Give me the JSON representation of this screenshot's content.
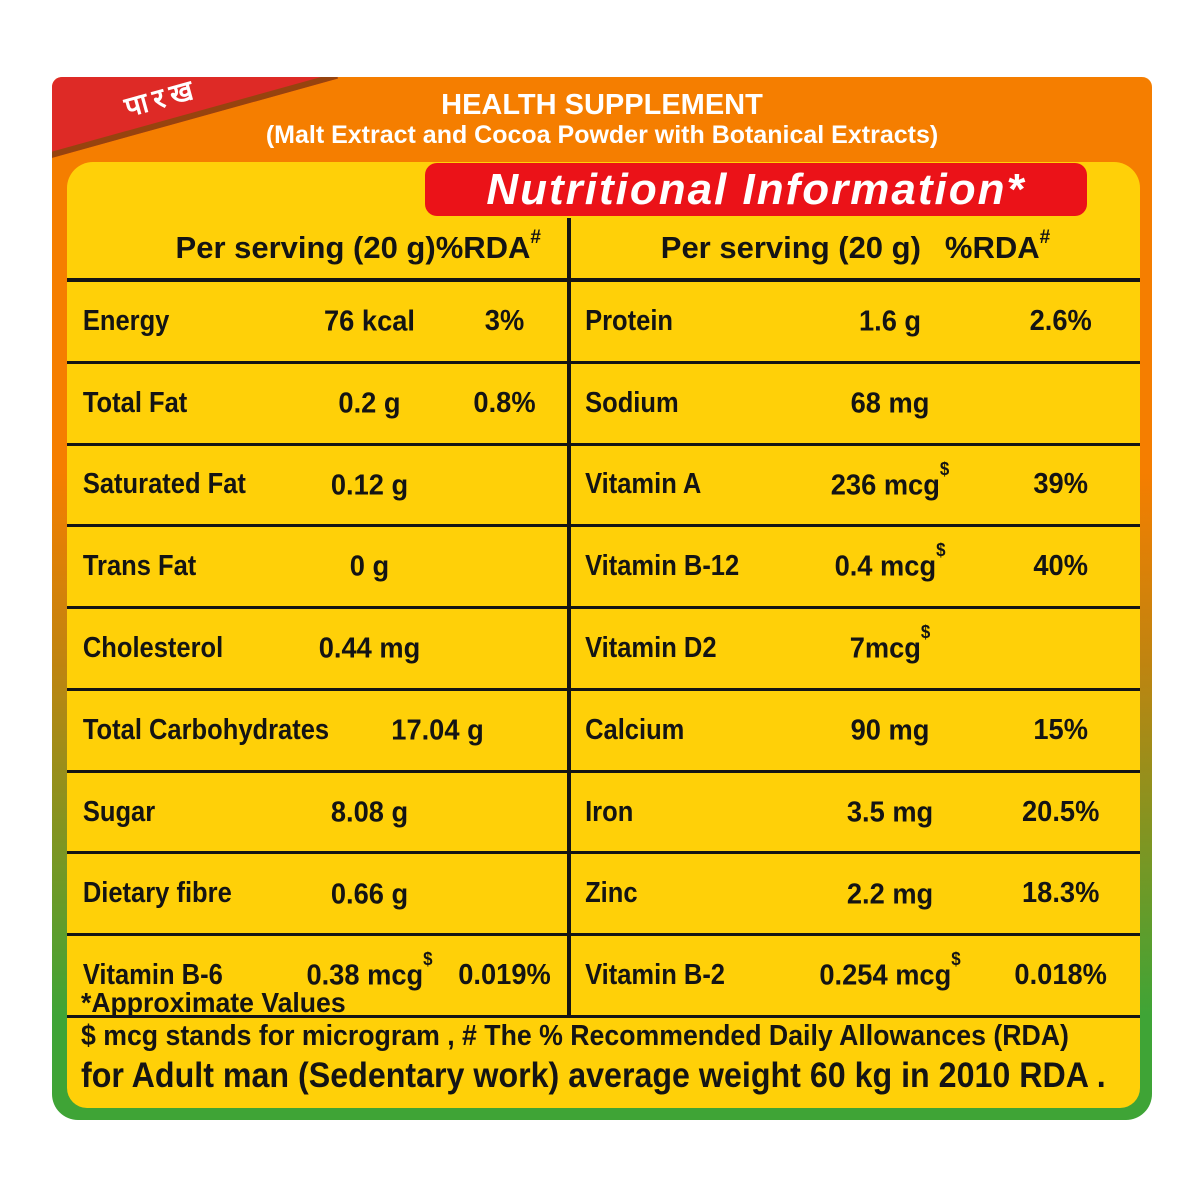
{
  "ribbon": {
    "text": "पारख"
  },
  "header": {
    "title": "HEALTH SUPPLEMENT",
    "subtitle": "(Malt Extract and Cocoa Powder with Botanical Extracts)"
  },
  "banner": {
    "title": "Nutritional Information*"
  },
  "columns": {
    "left_header": {
      "serving": "Per serving (20 g)",
      "rda": "%RDA",
      "rda_sup": "#"
    },
    "right_header": {
      "serving": "Per serving (20 g)",
      "rda": "%RDA",
      "rda_sup": "#"
    }
  },
  "left_rows": [
    {
      "label": "Energy",
      "value": "76 kcal",
      "sup": "",
      "rda": "3%"
    },
    {
      "label": "Total Fat",
      "value": "0.2 g",
      "sup": "",
      "rda": "0.8%"
    },
    {
      "label": "Saturated Fat",
      "value": "0.12 g",
      "sup": "",
      "rda": ""
    },
    {
      "label": "Trans Fat",
      "value": "0 g",
      "sup": "",
      "rda": ""
    },
    {
      "label": "Cholesterol",
      "value": "0.44 mg",
      "sup": "",
      "rda": ""
    },
    {
      "label": "Total Carbohydrates",
      "value": "17.04 g",
      "sup": "",
      "rda": ""
    },
    {
      "label": "Sugar",
      "value": "8.08 g",
      "sup": "",
      "rda": ""
    },
    {
      "label": "Dietary fibre",
      "value": "0.66 g",
      "sup": "",
      "rda": ""
    },
    {
      "label": "Vitamin  B-6",
      "value": "0.38 mcg",
      "sup": "$",
      "rda": "0.019%"
    }
  ],
  "right_rows": [
    {
      "label": "Protein",
      "value": "1.6 g",
      "sup": "",
      "rda": "2.6%"
    },
    {
      "label": "Sodium",
      "value": "68 mg",
      "sup": "",
      "rda": ""
    },
    {
      "label": "Vitamin A",
      "value": "236 mcg",
      "sup": "$",
      "rda": "39%"
    },
    {
      "label": "Vitamin B-12",
      "value": "0.4 mcg",
      "sup": "$",
      "rda": "40%"
    },
    {
      "label": "Vitamin  D2",
      "value": "7mcg",
      "sup": "$",
      "rda": ""
    },
    {
      "label": "Calcium",
      "value": "90 mg",
      "sup": "",
      "rda": "15%"
    },
    {
      "label": "Iron",
      "value": "3.5 mg",
      "sup": "",
      "rda": "20.5%"
    },
    {
      "label": "Zinc",
      "value": "2.2 mg",
      "sup": "",
      "rda": "18.3%"
    },
    {
      "label": "Vitamin  B-2",
      "value": "0.254 mcg",
      "sup": "$",
      "rda": "0.018%"
    }
  ],
  "footnotes": {
    "line1": "*Approximate Values",
    "line2": "$ mcg stands for microgram , # The % Recommended Daily Allowances (RDA)",
    "line3": "for Adult man (Sedentary work) average weight 60 kg in 2010 RDA ."
  },
  "colors": {
    "band_orange": "#F57E00",
    "panel_yellow": "#FFD008",
    "banner_red": "#EB1218",
    "ribbon_red": "#DE2A26",
    "border_green": "#3FA436",
    "text_black": "#141414"
  }
}
